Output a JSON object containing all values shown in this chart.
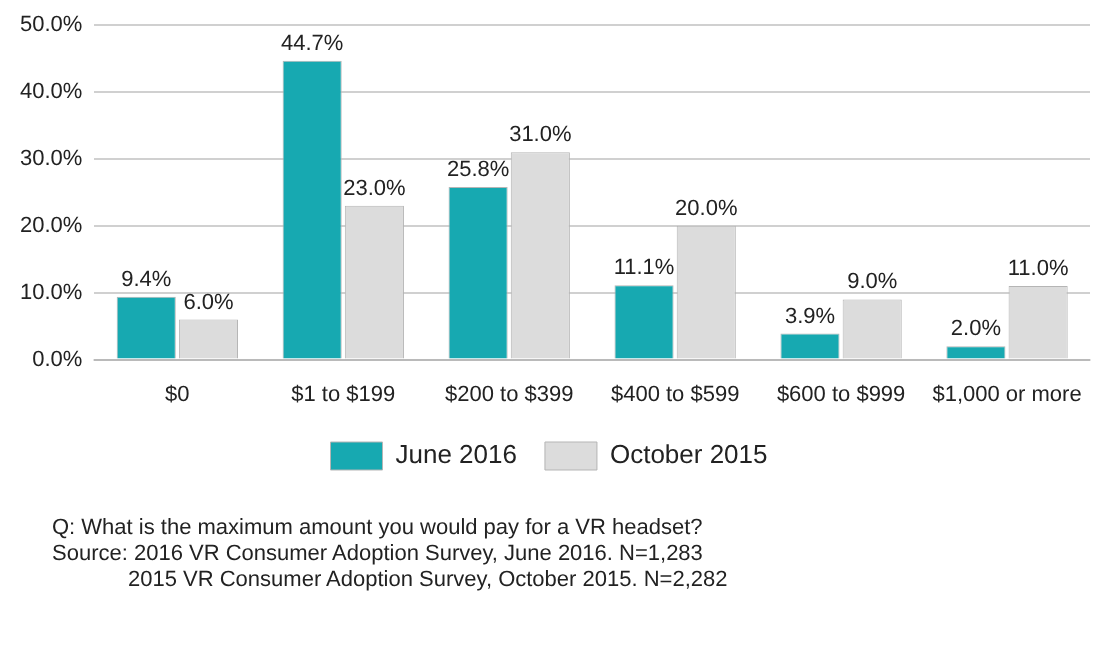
{
  "chart_data": {
    "type": "bar",
    "categories": [
      "$0",
      "$1 to $199",
      "$200 to $399",
      "$400 to $599",
      "$600 to $999",
      "$1,000 or more"
    ],
    "series": [
      {
        "name": "June 2016",
        "color": "#17a9b1",
        "values": [
          9.4,
          44.7,
          25.8,
          11.1,
          3.9,
          2.0
        ],
        "value_labels": [
          "9.4%",
          "44.7%",
          "25.8%",
          "11.1%",
          "3.9%",
          "2.0%"
        ]
      },
      {
        "name": "October 2015",
        "color": "#dcdcdc",
        "values": [
          6.0,
          23.0,
          31.0,
          20.0,
          9.0,
          11.0
        ],
        "value_labels": [
          "6.0%",
          "23.0%",
          "31.0%",
          "20.0%",
          "9.0%",
          "11.0%"
        ]
      }
    ],
    "ylim": [
      0,
      50
    ],
    "yticks": [
      {
        "value": 0,
        "label": "0.0%"
      },
      {
        "value": 10,
        "label": "10.0%"
      },
      {
        "value": 20,
        "label": "20.0%"
      },
      {
        "value": 30,
        "label": "30.0%"
      },
      {
        "value": 40,
        "label": "40.0%"
      },
      {
        "value": 50,
        "label": "50.0%"
      }
    ],
    "grid": "y",
    "legend": "bottom",
    "annotations": [
      "Q: What is the maximum amount you would pay for a VR headset?",
      "Source: 2016 VR Consumer Adoption Survey, June 2016. N=1,283",
      "2015 VR Consumer Adoption Survey, October 2015. N=2,282"
    ]
  }
}
